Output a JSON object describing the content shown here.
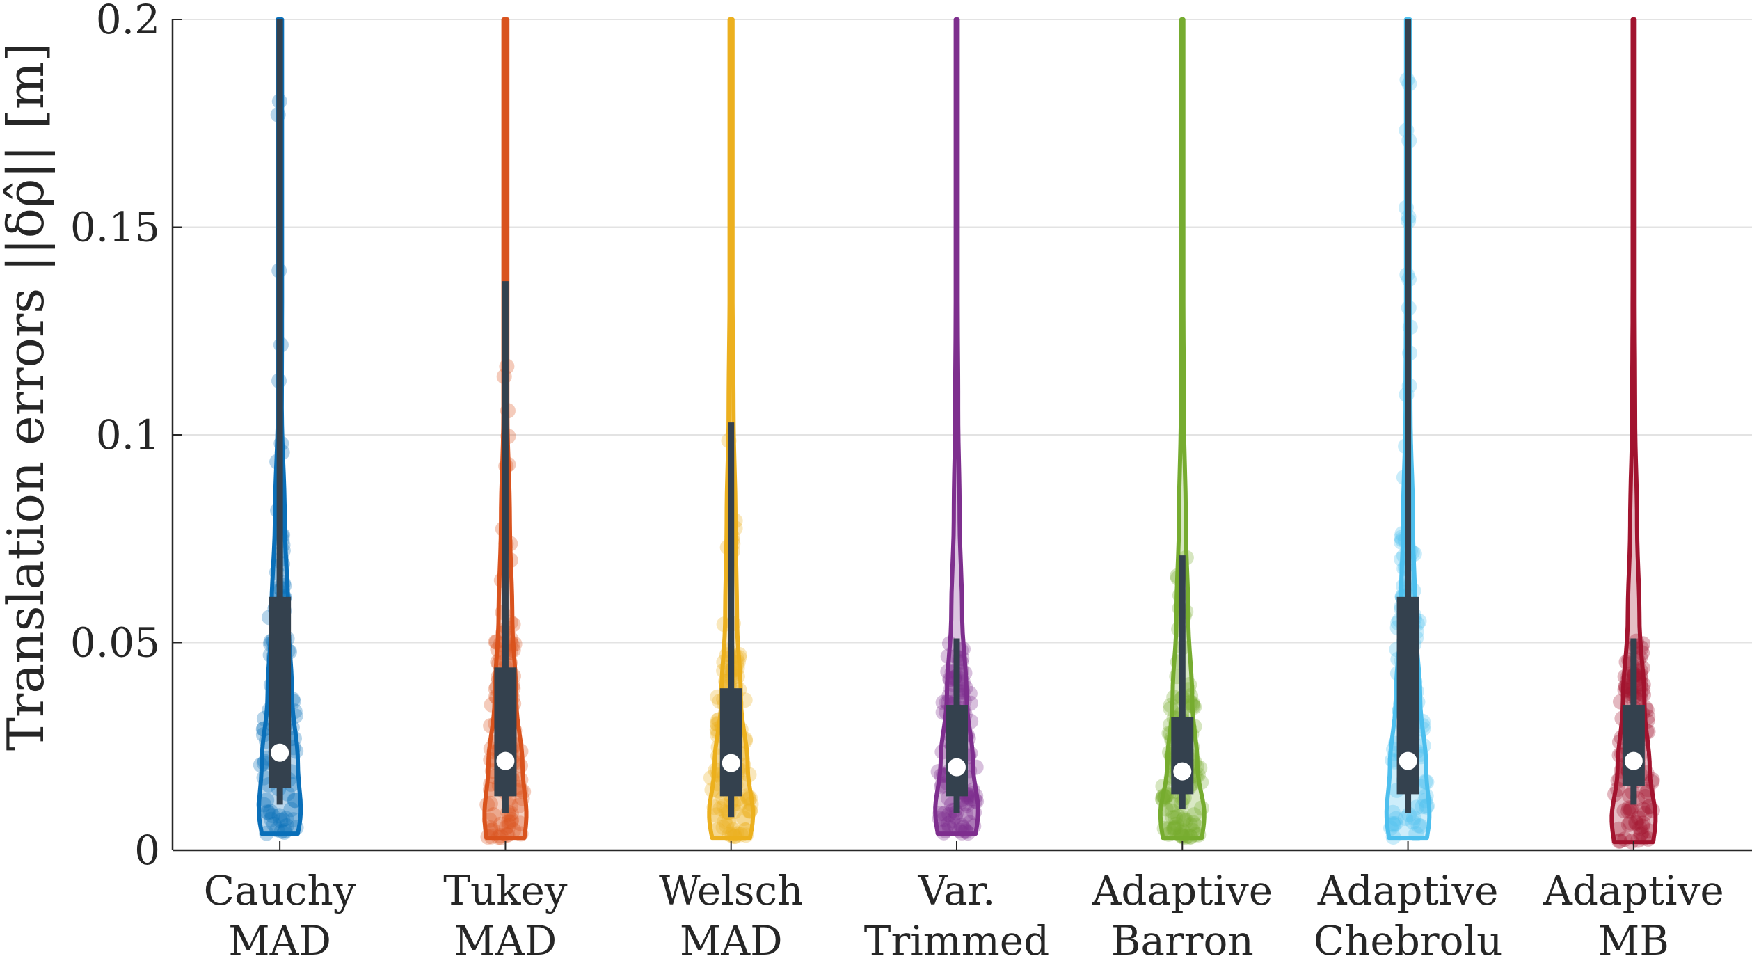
{
  "chart_data": {
    "type": "violin",
    "ylabel": "Translation errors ||δρ̂|| [m]",
    "xlabel": "",
    "ylim": [
      0,
      0.2
    ],
    "yticks": [
      0,
      0.05,
      0.1,
      0.15,
      0.2
    ],
    "ytick_labels": [
      "0",
      "0.05",
      "0.1",
      "0.15",
      "0.2"
    ],
    "grid": "horizontal",
    "categories": [
      [
        "Cauchy",
        "MAD"
      ],
      [
        "Tukey",
        "MAD"
      ],
      [
        "Welsch",
        "MAD"
      ],
      [
        "Var.",
        "Trimmed"
      ],
      [
        "Adaptive",
        "Barron"
      ],
      [
        "Adaptive",
        "Chebrolu"
      ],
      [
        "Adaptive",
        "MB"
      ]
    ],
    "colors": [
      "#0a6fb9",
      "#d9531e",
      "#ecb01f",
      "#7e2f8e",
      "#76ac30",
      "#4dbfee",
      "#a2142f"
    ],
    "series": [
      {
        "median": 0.0235,
        "q1": 0.015,
        "q3": 0.061,
        "whisker_low": 0.011,
        "whisker_high": 0.2,
        "min": 0.004,
        "max_visible": 0.2,
        "half_width": [
          0.037,
          0.043,
          0.037,
          0.025,
          0.017,
          0.01,
          0.004,
          0.0045,
          0.0045,
          0.0045
        ]
      },
      {
        "median": 0.0215,
        "q1": 0.013,
        "q3": 0.044,
        "whisker_low": 0.009,
        "whisker_high": 0.137,
        "min": 0.003,
        "max_visible": 0.2,
        "half_width": [
          0.039,
          0.043,
          0.035,
          0.022,
          0.014,
          0.009,
          0.004,
          0.004,
          0.004,
          0.004
        ]
      },
      {
        "median": 0.021,
        "q1": 0.013,
        "q3": 0.039,
        "whisker_low": 0.008,
        "whisker_high": 0.103,
        "min": 0.003,
        "max_visible": 0.2,
        "half_width": [
          0.039,
          0.045,
          0.034,
          0.02,
          0.012,
          0.009,
          0.005,
          0.003,
          0.003,
          0.003
        ]
      },
      {
        "median": 0.02,
        "q1": 0.013,
        "q3": 0.035,
        "whisker_low": 0.009,
        "whisker_high": 0.051,
        "min": 0.004,
        "max_visible": 0.2,
        "half_width": [
          0.039,
          0.044,
          0.033,
          0.02,
          0.011,
          0.006,
          0.003,
          0.002,
          0.002,
          0.002
        ]
      },
      {
        "median": 0.019,
        "q1": 0.0135,
        "q3": 0.032,
        "whisker_low": 0.01,
        "whisker_high": 0.071,
        "min": 0.003,
        "max_visible": 0.2,
        "half_width": [
          0.04,
          0.045,
          0.031,
          0.02,
          0.012,
          0.007,
          0.003,
          0.002,
          0.002,
          0.002
        ]
      },
      {
        "median": 0.0215,
        "q1": 0.0135,
        "q3": 0.061,
        "whisker_low": 0.009,
        "whisker_high": 0.2,
        "min": 0.003,
        "max_visible": 0.2,
        "half_width": [
          0.039,
          0.044,
          0.037,
          0.025,
          0.015,
          0.01,
          0.005,
          0.004,
          0.004,
          0.004
        ]
      },
      {
        "median": 0.0215,
        "q1": 0.0155,
        "q3": 0.035,
        "whisker_low": 0.011,
        "whisker_high": 0.051,
        "min": 0.002,
        "max_visible": 0.2,
        "half_width": [
          0.04,
          0.045,
          0.033,
          0.022,
          0.012,
          0.007,
          0.003,
          0.002,
          0.002,
          0.002
        ]
      }
    ]
  }
}
